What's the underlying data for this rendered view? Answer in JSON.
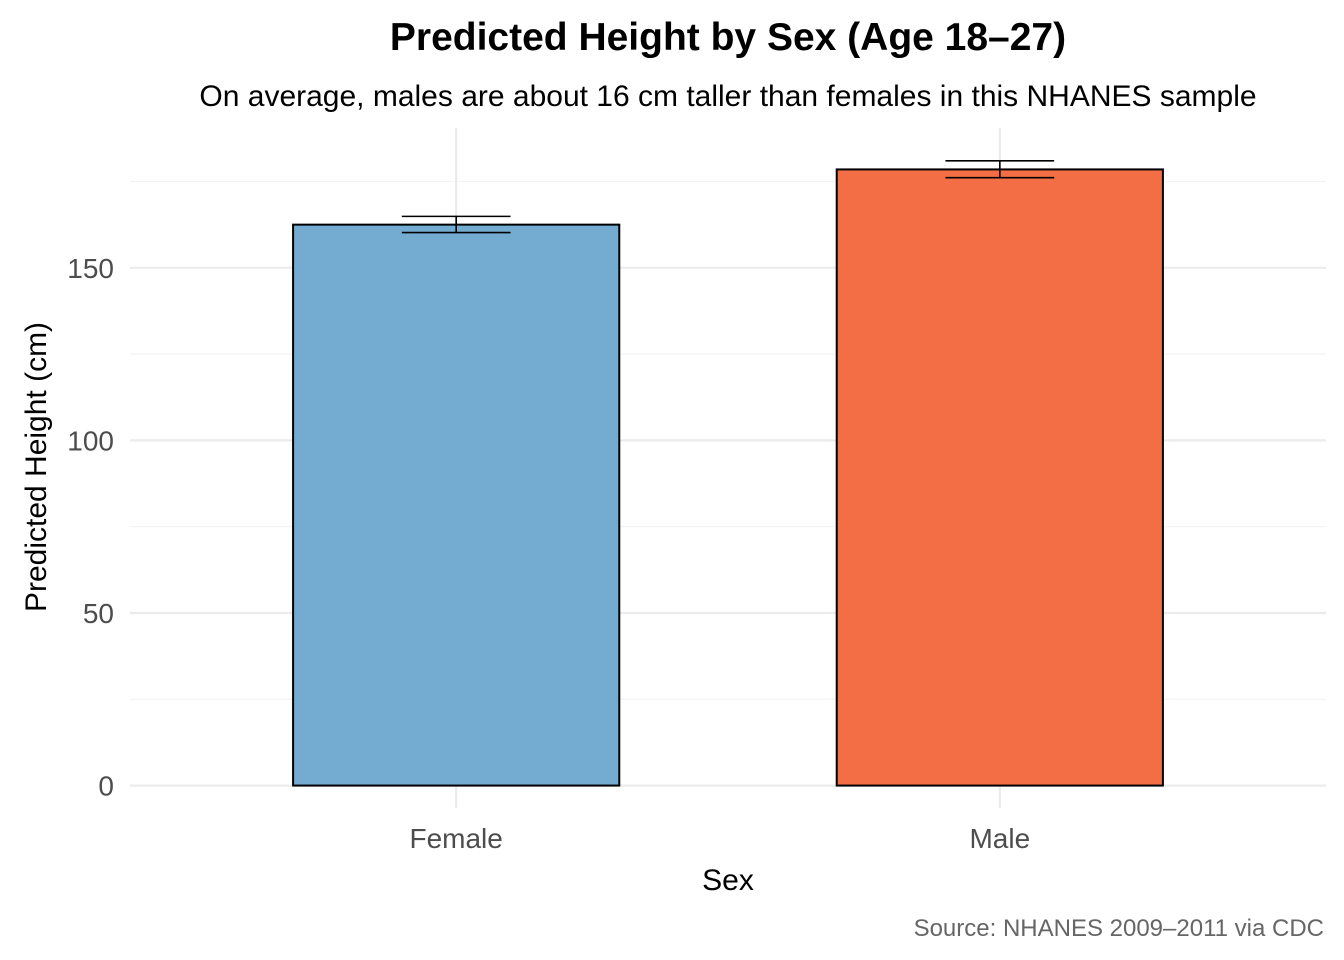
{
  "chart_data": {
    "type": "bar",
    "title": "Predicted Height by Sex (Age 18–27)",
    "subtitle": "On average, males are about 16 cm taller than females in this NHANES sample",
    "xlabel": "Sex",
    "ylabel": "Predicted Height (cm)",
    "caption": "Source: NHANES 2009–2011 via CDC",
    "categories": [
      "Female",
      "Male"
    ],
    "values": [
      162.5,
      178.5
    ],
    "error_low": [
      160.2,
      176.1
    ],
    "error_high": [
      164.9,
      181.0
    ],
    "colors": [
      "#74acd1",
      "#f46e45"
    ],
    "ylim": [
      -6.5,
      190.5
    ],
    "yticks": [
      0,
      50,
      100,
      150
    ],
    "grid": true,
    "legend": "none"
  }
}
